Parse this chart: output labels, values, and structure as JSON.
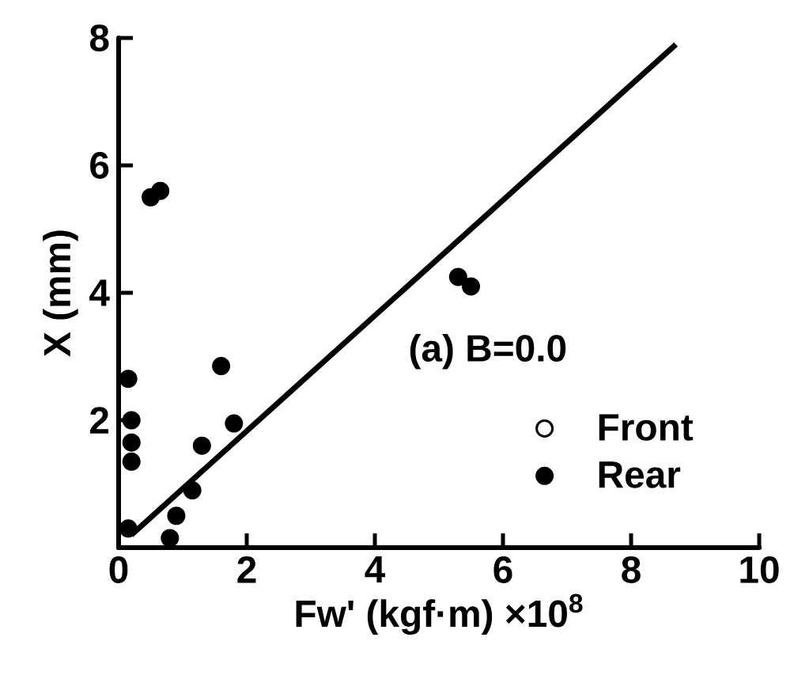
{
  "chart_data": {
    "type": "scatter",
    "xlabel": "Fw' (kgf·m) ×10$^{8}$",
    "ylabel": "X (mm)",
    "legend_title": "(a) B=0.0",
    "xlim": [
      0,
      10
    ],
    "ylim": [
      0,
      8
    ],
    "xticks": [
      0,
      2,
      4,
      6,
      8,
      10
    ],
    "yticks": [
      2,
      4,
      6,
      8
    ],
    "legend": "bottom right",
    "marker": "circle",
    "series": [
      {
        "name": "Front",
        "color": "#ffffff"
      },
      {
        "name": "Rear",
        "color": "#000000",
        "x": [
          0.15,
          0.15,
          0.2,
          0.2,
          0.2,
          0.5,
          0.65,
          0.8,
          0.9,
          1.15,
          1.3,
          1.6,
          1.8,
          5.3,
          5.5
        ],
        "values": [
          0.3,
          2.65,
          2.0,
          1.65,
          1.35,
          5.5,
          5.6,
          0.15,
          0.5,
          0.9,
          1.6,
          2.85,
          1.95,
          4.25,
          4.1
        ]
      },
      {
        "type": "line",
        "color": "#000000",
        "marker": "none",
        "x": [
          0.2,
          8.7
        ],
        "values": [
          0.2,
          7.9
        ]
      }
    ]
  }
}
